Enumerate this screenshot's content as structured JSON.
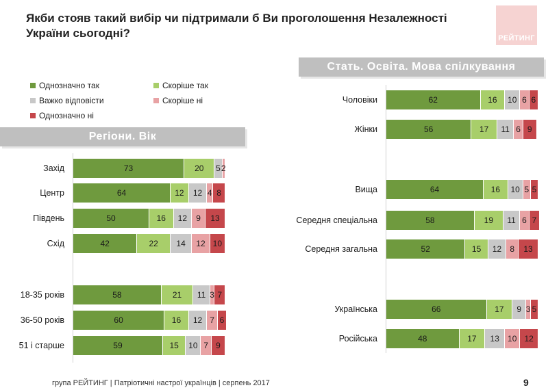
{
  "title": "Якби стояв такий вибір чи підтримали б Ви проголошення Незалежності України сьогодні?",
  "logo_text": "РЕЙТИНГ",
  "footer": "група РЕЙТИНГ  | Патріотичні настрої українців |  серпень 2017",
  "page_number": "9",
  "colors": {
    "definitely_yes": "#6f9a3e",
    "rather_yes": "#a8ce6a",
    "hard_to_say": "#c8c8c8",
    "rather_no": "#e8a2a4",
    "definitely_no": "#c5474b"
  },
  "chart_data": [
    {
      "type": "bar",
      "orientation": "horizontal",
      "stacked": true,
      "title": "Регіони. Вік",
      "legend": [
        {
          "key": "definitely_yes",
          "label": "Однозначно так"
        },
        {
          "key": "rather_yes",
          "label": "Скоріше так"
        },
        {
          "key": "hard_to_say",
          "label": "Важко відповісти"
        },
        {
          "key": "rather_no",
          "label": "Скоріше ні"
        },
        {
          "key": "definitely_no",
          "label": "Однозначно ні"
        }
      ],
      "categories": [
        "Захід",
        "Центр",
        "Південь",
        "Схід",
        "18-35 років",
        "36-50 років",
        "51 і старше"
      ],
      "groups": [
        [
          0,
          1,
          2,
          3
        ],
        [
          4,
          5,
          6
        ]
      ],
      "series": [
        {
          "name": "Однозначно так",
          "values": [
            73,
            64,
            50,
            42,
            58,
            60,
            59
          ]
        },
        {
          "name": "Скоріше так",
          "values": [
            20,
            12,
            16,
            22,
            21,
            16,
            15
          ]
        },
        {
          "name": "Важко відповісти",
          "values": [
            5,
            12,
            12,
            14,
            11,
            12,
            10
          ]
        },
        {
          "name": "Скоріше ні",
          "values": [
            2,
            4,
            9,
            12,
            3,
            7,
            7
          ]
        },
        {
          "name": "Однозначно ні",
          "values": [
            0,
            8,
            13,
            10,
            7,
            6,
            9
          ]
        }
      ],
      "labels": [
        [
          "73",
          "20",
          "5",
          "2",
          ""
        ],
        [
          "64",
          "12",
          "12",
          "4",
          "8"
        ],
        [
          "50",
          "16",
          "12",
          "9",
          "13"
        ],
        [
          "42",
          "22",
          "14",
          "12",
          "10"
        ],
        [
          "58",
          "21",
          "11",
          "3",
          "7"
        ],
        [
          "60",
          "16",
          "12",
          "7",
          "6"
        ],
        [
          "59",
          "15",
          "10",
          "7",
          "9"
        ]
      ]
    },
    {
      "type": "bar",
      "orientation": "horizontal",
      "stacked": true,
      "title": "Стать. Освіта. Мова спілкування",
      "categories": [
        "Чоловіки",
        "Жінки",
        "Вища",
        "Середня спеціальна",
        "Середня загальна",
        "Українська",
        "Російська"
      ],
      "groups": [
        [
          0,
          1
        ],
        [
          2,
          3,
          4
        ],
        [
          5,
          6
        ]
      ],
      "series": [
        {
          "name": "Однозначно так",
          "values": [
            62,
            56,
            64,
            58,
            52,
            66,
            48
          ]
        },
        {
          "name": "Скоріше так",
          "values": [
            16,
            17,
            16,
            19,
            15,
            17,
            17
          ]
        },
        {
          "name": "Важко відповісти",
          "values": [
            10,
            11,
            10,
            11,
            12,
            9,
            13
          ]
        },
        {
          "name": "Скоріше ні",
          "values": [
            6,
            6,
            5,
            6,
            8,
            3,
            10
          ]
        },
        {
          "name": "Однозначно ні",
          "values": [
            6,
            9,
            5,
            7,
            13,
            5,
            12
          ]
        }
      ],
      "labels": [
        [
          "62",
          "16",
          "10",
          "6",
          "6"
        ],
        [
          "56",
          "17",
          "11",
          "6",
          "9"
        ],
        [
          "64",
          "16",
          "10",
          "5",
          "5"
        ],
        [
          "58",
          "19",
          "11",
          "6",
          "7"
        ],
        [
          "52",
          "15",
          "12",
          "8",
          "13"
        ],
        [
          "66",
          "17",
          "9",
          "3",
          "5"
        ],
        [
          "48",
          "17",
          "13",
          "10",
          "12"
        ]
      ]
    }
  ]
}
